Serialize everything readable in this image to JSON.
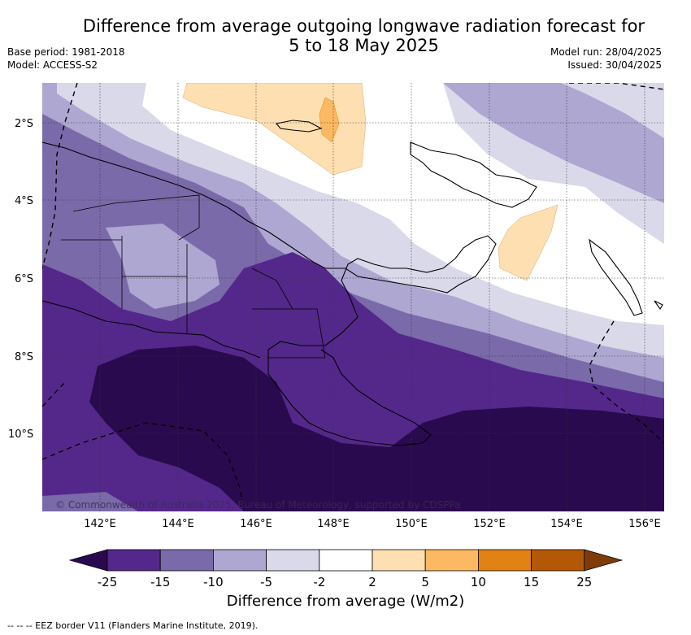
{
  "title_line1": "Difference from average outgoing longwave radiation forecast for",
  "title_line2": "5 to 18 May 2025",
  "base_period": "Base period: 1981-2018",
  "model": "Model: ACCESS-S2",
  "model_run": "Model run: 28/04/2025",
  "issued": "Issued: 30/04/2025",
  "lat_labels": [
    "2°S",
    "4°S",
    "6°S",
    "8°S",
    "10°S"
  ],
  "lon_labels": [
    "142°E",
    "144°E",
    "146°E",
    "148°E",
    "150°E",
    "152°E",
    "154°E",
    "156°E"
  ],
  "copyright": "© Commonwealth of Australia 2025, Bureau of Meteorology, supported by CDSPPa",
  "colorbar": {
    "ticks": [
      "-25",
      "-15",
      "-10",
      "-5",
      "-2",
      "2",
      "5",
      "10",
      "15",
      "25"
    ],
    "colors": [
      "#2a0a4f",
      "#54288a",
      "#7b6aa9",
      "#aea7d1",
      "#d9d9ea",
      "#ffffff",
      "#fedfb2",
      "#fdb863",
      "#e08214",
      "#b35806",
      "#7f3b08"
    ],
    "label": "Difference from average (W/m2)"
  },
  "eez_note": "--  --  -- EEZ border V11 (Flanders Marine Institute, 2019)."
}
